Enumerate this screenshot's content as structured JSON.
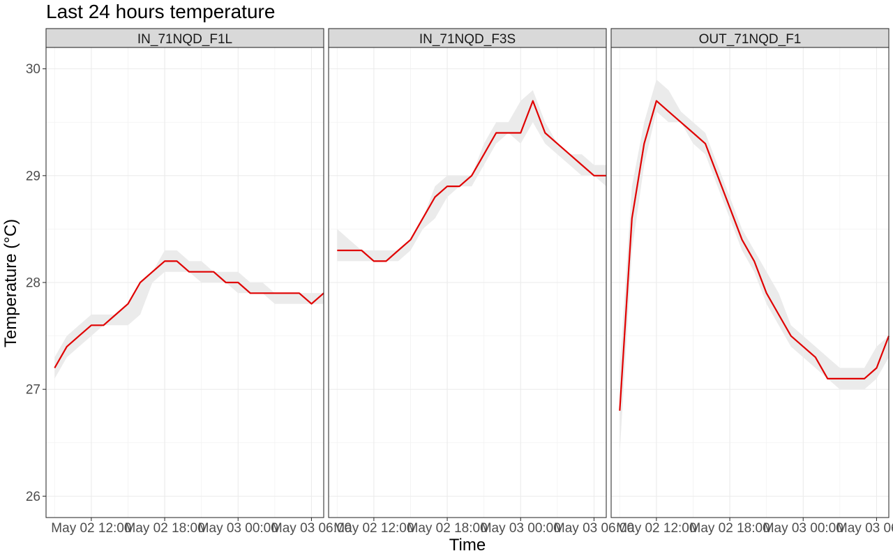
{
  "chart_data": {
    "type": "line",
    "title": "Last 24 hours temperature",
    "xlabel": "Time",
    "ylabel": "Temperature (°C)",
    "ylim": [
      25.8,
      30.2
    ],
    "xlim": [
      "2024-05-02T08:18",
      "2024-05-03T07:00"
    ],
    "y_ticks": [
      26,
      27,
      28,
      29,
      30
    ],
    "y_tick_labels": [
      "26",
      "27",
      "28",
      "29",
      "30"
    ],
    "x_ticks": [
      "2024-05-02T12:00",
      "2024-05-02T18:00",
      "2024-05-03T00:00",
      "2024-05-03T06:00"
    ],
    "x_tick_labels": [
      "May 02 12:00",
      "May 02 18:00",
      "May 03 00:00",
      "May 03 06:00"
    ],
    "grid": true,
    "line_color": "#e00000",
    "band_color": "#ebebeb",
    "panels": [
      {
        "name": "IN_71NQD_F1L",
        "x": [
          "2024-05-02T09:00",
          "2024-05-02T10:00",
          "2024-05-02T11:00",
          "2024-05-02T12:00",
          "2024-05-02T13:00",
          "2024-05-02T14:00",
          "2024-05-02T15:00",
          "2024-05-02T16:00",
          "2024-05-02T17:00",
          "2024-05-02T18:00",
          "2024-05-02T19:00",
          "2024-05-02T20:00",
          "2024-05-02T21:00",
          "2024-05-02T22:00",
          "2024-05-02T23:00",
          "2024-05-03T00:00",
          "2024-05-03T01:00",
          "2024-05-03T02:00",
          "2024-05-03T03:00",
          "2024-05-03T04:00",
          "2024-05-03T05:00",
          "2024-05-03T06:00",
          "2024-05-03T07:00"
        ],
        "y": [
          27.2,
          27.4,
          27.5,
          27.6,
          27.6,
          27.7,
          27.8,
          28.0,
          28.1,
          28.2,
          28.2,
          28.1,
          28.1,
          28.1,
          28.0,
          28.0,
          27.9,
          27.9,
          27.9,
          27.9,
          27.9,
          27.8,
          27.9
        ],
        "y_min": [
          27.1,
          27.3,
          27.4,
          27.5,
          27.6,
          27.6,
          27.6,
          27.7,
          28.0,
          28.1,
          28.1,
          28.1,
          28.0,
          28.0,
          28.0,
          27.9,
          27.9,
          27.9,
          27.8,
          27.8,
          27.8,
          27.8,
          27.8
        ],
        "y_max": [
          27.3,
          27.5,
          27.6,
          27.7,
          27.7,
          27.7,
          27.8,
          28.0,
          28.1,
          28.3,
          28.3,
          28.2,
          28.2,
          28.1,
          28.1,
          28.1,
          28.0,
          28.0,
          27.9,
          27.9,
          27.9,
          27.9,
          27.9
        ]
      },
      {
        "name": "IN_71NQD_F3S",
        "x": [
          "2024-05-02T09:00",
          "2024-05-02T10:00",
          "2024-05-02T11:00",
          "2024-05-02T12:00",
          "2024-05-02T13:00",
          "2024-05-02T14:00",
          "2024-05-02T15:00",
          "2024-05-02T16:00",
          "2024-05-02T17:00",
          "2024-05-02T18:00",
          "2024-05-02T19:00",
          "2024-05-02T20:00",
          "2024-05-02T21:00",
          "2024-05-02T22:00",
          "2024-05-02T23:00",
          "2024-05-03T00:00",
          "2024-05-03T01:00",
          "2024-05-03T02:00",
          "2024-05-03T03:00",
          "2024-05-03T04:00",
          "2024-05-03T05:00",
          "2024-05-03T06:00",
          "2024-05-03T07:00"
        ],
        "y": [
          28.3,
          28.3,
          28.3,
          28.2,
          28.2,
          28.3,
          28.4,
          28.6,
          28.8,
          28.9,
          28.9,
          29.0,
          29.2,
          29.4,
          29.4,
          29.4,
          29.7,
          29.4,
          29.3,
          29.2,
          29.1,
          29.0,
          29.0
        ],
        "y_min": [
          28.2,
          28.2,
          28.2,
          28.2,
          28.2,
          28.2,
          28.3,
          28.5,
          28.6,
          28.8,
          28.9,
          28.9,
          29.1,
          29.3,
          29.4,
          29.3,
          29.5,
          29.3,
          29.2,
          29.1,
          29.0,
          29.0,
          28.9
        ],
        "y_max": [
          28.5,
          28.4,
          28.3,
          28.3,
          28.3,
          28.3,
          28.4,
          28.6,
          28.9,
          29.0,
          29.0,
          29.0,
          29.3,
          29.5,
          29.5,
          29.7,
          29.8,
          29.5,
          29.3,
          29.2,
          29.2,
          29.1,
          29.1
        ]
      },
      {
        "name": "OUT_71NQD_F1",
        "x": [
          "2024-05-02T09:00",
          "2024-05-02T10:00",
          "2024-05-02T11:00",
          "2024-05-02T12:00",
          "2024-05-02T13:00",
          "2024-05-02T14:00",
          "2024-05-02T15:00",
          "2024-05-02T16:00",
          "2024-05-02T17:00",
          "2024-05-02T18:00",
          "2024-05-02T19:00",
          "2024-05-02T20:00",
          "2024-05-02T21:00",
          "2024-05-02T22:00",
          "2024-05-02T23:00",
          "2024-05-03T00:00",
          "2024-05-03T01:00",
          "2024-05-03T02:00",
          "2024-05-03T03:00",
          "2024-05-03T04:00",
          "2024-05-03T05:00",
          "2024-05-03T06:00",
          "2024-05-03T07:00"
        ],
        "y": [
          26.8,
          28.6,
          29.3,
          29.7,
          29.6,
          29.5,
          29.4,
          29.3,
          29.0,
          28.7,
          28.4,
          28.2,
          27.9,
          27.7,
          27.5,
          27.4,
          27.3,
          27.1,
          27.1,
          27.1,
          27.1,
          27.2,
          27.5
        ],
        "y_min": [
          26.4,
          28.3,
          29.1,
          29.6,
          29.5,
          29.5,
          29.3,
          29.2,
          28.9,
          28.6,
          28.3,
          28.1,
          27.8,
          27.6,
          27.4,
          27.3,
          27.2,
          27.1,
          27.0,
          27.0,
          27.0,
          27.1,
          27.3
        ],
        "y_max": [
          27.2,
          28.9,
          29.5,
          29.9,
          29.8,
          29.6,
          29.5,
          29.4,
          29.1,
          28.8,
          28.5,
          28.3,
          28.1,
          27.9,
          27.6,
          27.5,
          27.4,
          27.3,
          27.2,
          27.2,
          27.2,
          27.4,
          27.5
        ]
      }
    ]
  }
}
